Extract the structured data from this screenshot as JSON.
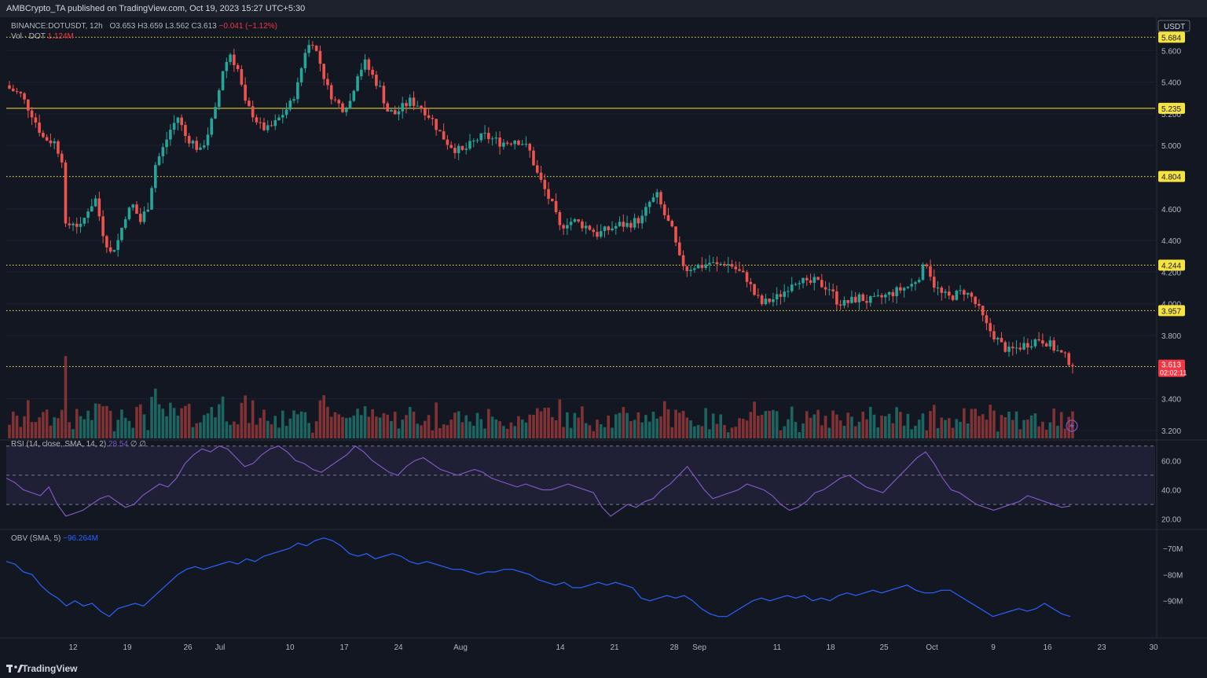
{
  "header": {
    "published": "AMBCrypto_TA published on TradingView.com, Oct 19, 2023 15:27 UTC+5:30"
  },
  "legend": {
    "symbol": "BINANCE:DOTUSDT, 12h",
    "open": "O3.653",
    "high": "H3.659",
    "low": "L3.562",
    "close": "C3.613",
    "change": "−0.041 (−1.12%)",
    "vol_label": "Vol · DOT",
    "vol_value": "1.124M",
    "rsi_label": "RSI (14, close, SMA, 14, 2)",
    "rsi_value": "28.54",
    "rsi_na1": "∅",
    "rsi_na2": "∅",
    "obv_label": "OBV (SMA, 5)",
    "obv_value": "−96.264M"
  },
  "price_axis": {
    "currency": "USDT",
    "current_price": "3.613",
    "countdown": "02:02:11"
  },
  "footer": {
    "brand": "TradingView"
  },
  "colors": {
    "up": "#26a69a",
    "down": "#ef5350",
    "level": "#f5e342",
    "rsi": "#7e57c2",
    "obv": "#2962ff",
    "bg": "#131722"
  },
  "chart_data": [
    {
      "type": "candlestick",
      "title": "BINANCE:DOTUSDT, 12h",
      "ylim": [
        3.15,
        5.77
      ],
      "yticks": [
        3.2,
        3.4,
        3.6,
        3.8,
        4.0,
        4.2,
        4.4,
        4.6,
        4.8,
        5.0,
        5.2,
        5.4,
        5.6
      ],
      "ytick_labels": [
        "3.200",
        "3.400",
        "3.600",
        "3.800",
        "4.000",
        "4.200",
        "4.400",
        "4.600",
        "4.800",
        "5.000",
        "5.200",
        "5.400",
        "5.600"
      ],
      "xticks": [
        "12",
        "19",
        "26",
        "Jul",
        "10",
        "17",
        "24",
        "Aug",
        "14",
        "21",
        "28",
        "Sep",
        "11",
        "18",
        "25",
        "Oct",
        "9",
        "16",
        "23",
        "30"
      ],
      "levels": [
        {
          "value": 5.684,
          "label": "5.684",
          "style": "dotted"
        },
        {
          "value": 5.235,
          "label": "5.235",
          "style": "solid"
        },
        {
          "value": 4.804,
          "label": "4.804",
          "style": "dotted"
        },
        {
          "value": 4.244,
          "label": "4.244",
          "style": "dotted"
        },
        {
          "value": 3.957,
          "label": "3.957",
          "style": "dotted"
        },
        {
          "value": 3.604,
          "label": "3.604",
          "style": "dotted"
        }
      ],
      "close_path": [
        [
          0,
          5.36
        ],
        [
          3,
          5.32
        ],
        [
          6,
          5.2
        ],
        [
          9,
          5.05
        ],
        [
          12,
          5.02
        ],
        [
          14,
          4.92
        ],
        [
          15,
          4.48
        ],
        [
          17,
          4.52
        ],
        [
          19,
          4.48
        ],
        [
          21,
          4.6
        ],
        [
          23,
          4.66
        ],
        [
          25,
          4.45
        ],
        [
          27,
          4.32
        ],
        [
          29,
          4.4
        ],
        [
          31,
          4.56
        ],
        [
          33,
          4.62
        ],
        [
          35,
          4.52
        ],
        [
          37,
          4.62
        ],
        [
          39,
          4.88
        ],
        [
          41,
          4.98
        ],
        [
          43,
          5.1
        ],
        [
          45,
          5.18
        ],
        [
          47,
          5.06
        ],
        [
          49,
          5.02
        ],
        [
          51,
          4.96
        ],
        [
          53,
          5.08
        ],
        [
          55,
          5.22
        ],
        [
          57,
          5.48
        ],
        [
          59,
          5.58
        ],
        [
          61,
          5.48
        ],
        [
          63,
          5.26
        ],
        [
          65,
          5.2
        ],
        [
          67,
          5.12
        ],
        [
          69,
          5.1
        ],
        [
          71,
          5.14
        ],
        [
          73,
          5.2
        ],
        [
          75,
          5.26
        ],
        [
          77,
          5.38
        ],
        [
          79,
          5.6
        ],
        [
          81,
          5.66
        ],
        [
          83,
          5.52
        ],
        [
          85,
          5.36
        ],
        [
          87,
          5.28
        ],
        [
          89,
          5.24
        ],
        [
          91,
          5.28
        ],
        [
          93,
          5.46
        ],
        [
          95,
          5.52
        ],
        [
          97,
          5.44
        ],
        [
          99,
          5.36
        ],
        [
          101,
          5.22
        ],
        [
          103,
          5.2
        ],
        [
          105,
          5.24
        ],
        [
          107,
          5.28
        ],
        [
          109,
          5.26
        ],
        [
          111,
          5.22
        ],
        [
          113,
          5.16
        ],
        [
          115,
          5.08
        ],
        [
          117,
          5.02
        ],
        [
          119,
          4.98
        ],
        [
          121,
          4.96
        ],
        [
          123,
          5.0
        ],
        [
          125,
          5.04
        ],
        [
          127,
          5.06
        ],
        [
          129,
          5.04
        ],
        [
          131,
          5.02
        ],
        [
          133,
          5.02
        ],
        [
          135,
          5.04
        ],
        [
          137,
          5.02
        ],
        [
          139,
          4.96
        ],
        [
          141,
          4.82
        ],
        [
          143,
          4.72
        ],
        [
          145,
          4.62
        ],
        [
          147,
          4.48
        ],
        [
          149,
          4.52
        ],
        [
          151,
          4.52
        ],
        [
          153,
          4.5
        ],
        [
          155,
          4.48
        ],
        [
          157,
          4.44
        ],
        [
          159,
          4.46
        ],
        [
          161,
          4.48
        ],
        [
          163,
          4.5
        ],
        [
          165,
          4.5
        ],
        [
          167,
          4.52
        ],
        [
          169,
          4.54
        ],
        [
          171,
          4.64
        ],
        [
          173,
          4.68
        ],
        [
          175,
          4.56
        ],
        [
          177,
          4.46
        ],
        [
          179,
          4.28
        ],
        [
          181,
          4.22
        ],
        [
          183,
          4.24
        ],
        [
          185,
          4.24
        ],
        [
          187,
          4.26
        ],
        [
          189,
          4.24
        ],
        [
          191,
          4.26
        ],
        [
          193,
          4.24
        ],
        [
          195,
          4.2
        ],
        [
          197,
          4.16
        ],
        [
          199,
          4.06
        ],
        [
          201,
          4.0
        ],
        [
          203,
          4.02
        ],
        [
          205,
          4.04
        ],
        [
          207,
          4.08
        ],
        [
          209,
          4.14
        ],
        [
          211,
          4.16
        ],
        [
          213,
          4.12
        ],
        [
          215,
          4.14
        ],
        [
          217,
          4.12
        ],
        [
          219,
          4.1
        ],
        [
          221,
          4.02
        ],
        [
          223,
          4.0
        ],
        [
          225,
          4.02
        ],
        [
          227,
          4.04
        ],
        [
          229,
          4.02
        ],
        [
          231,
          4.02
        ],
        [
          233,
          4.04
        ],
        [
          235,
          4.06
        ],
        [
          237,
          4.08
        ],
        [
          239,
          4.1
        ],
        [
          241,
          4.12
        ],
        [
          243,
          4.18
        ],
        [
          245,
          4.26
        ],
        [
          247,
          4.12
        ],
        [
          249,
          4.06
        ],
        [
          251,
          4.04
        ],
        [
          253,
          4.06
        ],
        [
          255,
          4.08
        ],
        [
          257,
          4.04
        ],
        [
          259,
          3.96
        ],
        [
          261,
          3.86
        ],
        [
          263,
          3.8
        ],
        [
          265,
          3.74
        ],
        [
          267,
          3.7
        ],
        [
          269,
          3.72
        ],
        [
          271,
          3.74
        ],
        [
          273,
          3.76
        ],
        [
          275,
          3.78
        ],
        [
          277,
          3.76
        ],
        [
          279,
          3.72
        ],
        [
          281,
          3.68
        ],
        [
          283,
          3.64
        ],
        [
          285,
          3.61
        ]
      ]
    },
    {
      "type": "line",
      "title": "RSI (14, close, SMA, 14, 2)",
      "ylim": [
        15,
        72
      ],
      "yticks": [
        20,
        40,
        60
      ],
      "ytick_labels": [
        "20.00",
        "40.00",
        "60.00"
      ],
      "bands": [
        30,
        50,
        70
      ],
      "series": [
        {
          "values": [
            48,
            45,
            40,
            38,
            36,
            42,
            30,
            22,
            24,
            26,
            30,
            34,
            36,
            32,
            28,
            30,
            36,
            40,
            44,
            42,
            48,
            58,
            64,
            68,
            66,
            70,
            68,
            62,
            56,
            58,
            64,
            68,
            70,
            66,
            60,
            58,
            54,
            52,
            56,
            60,
            64,
            70,
            66,
            60,
            56,
            52,
            50,
            56,
            60,
            62,
            58,
            54,
            52,
            50,
            52,
            54,
            52,
            48,
            46,
            44,
            42,
            44,
            42,
            40,
            40,
            42,
            44,
            42,
            40,
            38,
            28,
            22,
            26,
            30,
            28,
            32,
            34,
            40,
            44,
            50,
            56,
            48,
            40,
            34,
            36,
            38,
            40,
            44,
            42,
            40,
            36,
            30,
            26,
            28,
            32,
            38,
            40,
            44,
            48,
            50,
            46,
            42,
            40,
            38,
            44,
            50,
            56,
            62,
            66,
            58,
            48,
            40,
            38,
            34,
            30,
            28,
            26,
            28,
            30,
            32,
            36,
            34,
            32,
            30,
            28,
            29
          ]
        }
      ]
    },
    {
      "type": "line",
      "title": "OBV (SMA, 5)",
      "ylim": [
        -103,
        -64
      ],
      "yticks": [
        -70,
        -80,
        -90
      ],
      "ytick_labels": [
        "−70M",
        "−80M",
        "−90M"
      ],
      "series": [
        {
          "values": [
            -75,
            -76,
            -79,
            -80,
            -84,
            -87,
            -89,
            -92,
            -90,
            -92,
            -91,
            -94,
            -96,
            -93,
            -92,
            -91,
            -92,
            -89,
            -86,
            -83,
            -80,
            -78,
            -77,
            -78,
            -77,
            -76,
            -75,
            -76,
            -74,
            -75,
            -73,
            -72,
            -71,
            -70,
            -68,
            -69,
            -67,
            -66,
            -67,
            -69,
            -72,
            -73,
            -72,
            -74,
            -73,
            -72,
            -73,
            -75,
            -76,
            -75,
            -76,
            -77,
            -78,
            -78,
            -79,
            -80,
            -79,
            -79,
            -78,
            -78,
            -79,
            -80,
            -82,
            -83,
            -84,
            -83,
            -85,
            -85,
            -84,
            -83,
            -84,
            -83,
            -84,
            -85,
            -89,
            -90,
            -89,
            -88,
            -89,
            -88,
            -90,
            -93,
            -95,
            -96,
            -96,
            -94,
            -92,
            -90,
            -89,
            -90,
            -89,
            -88,
            -89,
            -88,
            -90,
            -89,
            -90,
            -88,
            -87,
            -88,
            -87,
            -86,
            -87,
            -86,
            -85,
            -84,
            -86,
            -87,
            -87,
            -86,
            -86,
            -88,
            -90,
            -92,
            -94,
            -96,
            -95,
            -94,
            -93,
            -94,
            -93,
            -91,
            -93,
            -95,
            -96
          ]
        }
      ]
    }
  ]
}
